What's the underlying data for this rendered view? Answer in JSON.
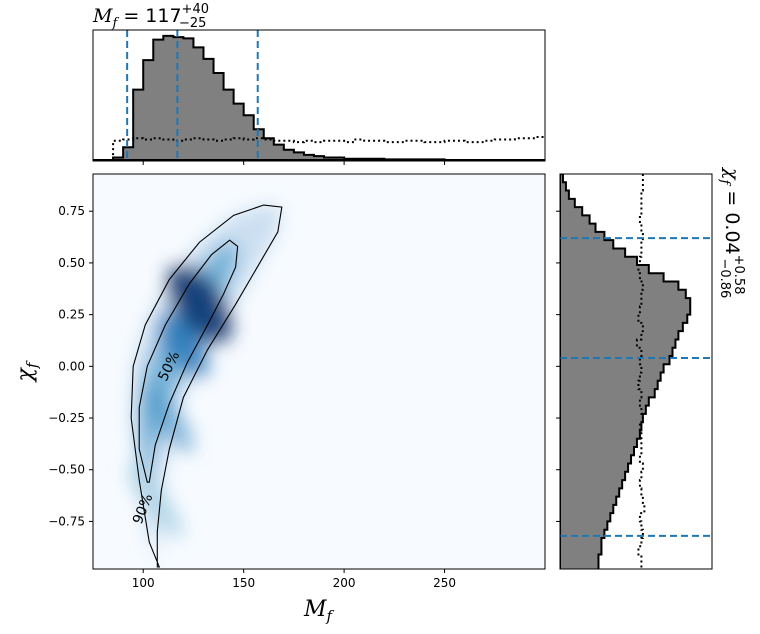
{
  "chart_data": [
    {
      "type": "histogram",
      "panel": "top-marginal",
      "title": {
        "var": "M",
        "sub": "f",
        "eq": " = 117",
        "sup": "+40",
        "sub2": "−25"
      },
      "xlim": [
        75,
        300
      ],
      "bin_width": 5,
      "bin_start": 75,
      "posterior": [
        0,
        0,
        2,
        10,
        55,
        78,
        94,
        97,
        96,
        95,
        88,
        79,
        68,
        55,
        44,
        35,
        24,
        17,
        12,
        8,
        6,
        4,
        3,
        2,
        2,
        1,
        1,
        1,
        1,
        0.5,
        0.5,
        0.5,
        0.5,
        0.5,
        0.5,
        0,
        0,
        0,
        0,
        0,
        0,
        0,
        0,
        0,
        0
      ],
      "prior": [
        0,
        0,
        15,
        16,
        17,
        16,
        17,
        16,
        15,
        16,
        17,
        16,
        15,
        16,
        17,
        16,
        17,
        16,
        15,
        15,
        14,
        15,
        14,
        15,
        15,
        14,
        16,
        15,
        15,
        14,
        14,
        15,
        15,
        14,
        14,
        15,
        15,
        14,
        14,
        15,
        16,
        16,
        17,
        17,
        18
      ],
      "quantile_lines": [
        92,
        117,
        157
      ]
    },
    {
      "type": "heatmap",
      "panel": "joint",
      "xlabel": {
        "var": "M",
        "sub": "f"
      },
      "ylabel": {
        "var": "χ",
        "sub": "f"
      },
      "xlim": [
        75,
        300
      ],
      "ylim": [
        -0.98,
        0.93
      ],
      "xticks": [
        "100",
        "150",
        "200",
        "250"
      ],
      "xtick_values": [
        100,
        150,
        200,
        250
      ],
      "yticks": [
        "0.75",
        "0.50",
        "0.25",
        "0.00",
        "−0.25",
        "−0.50",
        "−0.75"
      ],
      "ytick_values": [
        0.75,
        0.5,
        0.25,
        0.0,
        -0.25,
        -0.5,
        -0.75
      ],
      "colormap": "Blues",
      "contour_labels": [
        "50%",
        "90%"
      ],
      "contours": [
        {
          "level": "50%",
          "points": [
            [
              102,
              -0.56
            ],
            [
              98,
              -0.4
            ],
            [
              98,
              -0.2
            ],
            [
              102,
              0.0
            ],
            [
              111,
              0.2
            ],
            [
              123,
              0.4
            ],
            [
              134,
              0.54
            ],
            [
              143,
              0.61
            ],
            [
              147,
              0.58
            ],
            [
              146,
              0.48
            ],
            [
              140,
              0.35
            ],
            [
              132,
              0.2
            ],
            [
              122,
              0.02
            ],
            [
              113,
              -0.18
            ],
            [
              106,
              -0.38
            ],
            [
              103,
              -0.56
            ]
          ]
        },
        {
          "level": "90%",
          "points": [
            [
              108,
              -0.97
            ],
            [
              103,
              -0.85
            ],
            [
              98,
              -0.55
            ],
            [
              94,
              -0.25
            ],
            [
              95,
              0.0
            ],
            [
              101,
              0.2
            ],
            [
              113,
              0.42
            ],
            [
              128,
              0.6
            ],
            [
              145,
              0.73
            ],
            [
              160,
              0.78
            ],
            [
              169,
              0.77
            ],
            [
              167,
              0.65
            ],
            [
              158,
              0.5
            ],
            [
              146,
              0.3
            ],
            [
              132,
              0.08
            ],
            [
              120,
              -0.15
            ],
            [
              113,
              -0.4
            ],
            [
              109,
              -0.6
            ],
            [
              107,
              -0.8
            ],
            [
              107,
              -0.97
            ]
          ]
        }
      ]
    },
    {
      "type": "histogram",
      "panel": "right-marginal",
      "title": {
        "var": "χ",
        "sub": "f",
        "eq": " = 0.04",
        "sup": "+0.58",
        "sub2": "−0.86"
      },
      "ylim": [
        -0.98,
        0.93
      ],
      "bin_values": [
        0.91,
        0.87,
        0.83,
        0.79,
        0.75,
        0.71,
        0.67,
        0.63,
        0.59,
        0.55,
        0.51,
        0.47,
        0.43,
        0.39,
        0.35,
        0.31,
        0.27,
        0.23,
        0.19,
        0.15,
        0.11,
        0.07,
        0.03,
        -0.01,
        -0.05,
        -0.09,
        -0.13,
        -0.17,
        -0.21,
        -0.25,
        -0.29,
        -0.33,
        -0.37,
        -0.41,
        -0.45,
        -0.49,
        -0.53,
        -0.57,
        -0.61,
        -0.65,
        -0.69,
        -0.73,
        -0.77,
        -0.81,
        -0.85,
        -0.89,
        -0.93,
        -0.97
      ],
      "posterior": [
        2,
        4,
        6,
        10,
        15,
        20,
        24,
        30,
        36,
        44,
        52,
        60,
        70,
        80,
        85,
        88,
        88,
        86,
        83,
        80,
        78,
        76,
        74,
        70,
        68,
        66,
        64,
        60,
        58,
        56,
        55,
        54,
        52,
        50,
        48,
        46,
        44,
        42,
        40,
        38,
        36,
        34,
        32,
        30,
        28,
        28,
        26,
        26
      ],
      "prior": [
        56,
        56,
        55,
        55,
        55,
        54,
        55,
        56,
        55,
        55,
        54,
        53,
        54,
        56,
        55,
        55,
        54,
        53,
        56,
        55,
        52,
        55,
        54,
        55,
        54,
        53,
        55,
        54,
        55,
        56,
        54,
        55,
        55,
        55,
        54,
        56,
        55,
        54,
        55,
        56,
        57,
        54,
        55,
        56,
        55,
        53,
        55,
        55
      ],
      "quantile_lines": [
        0.62,
        0.04,
        -0.82
      ]
    }
  ]
}
